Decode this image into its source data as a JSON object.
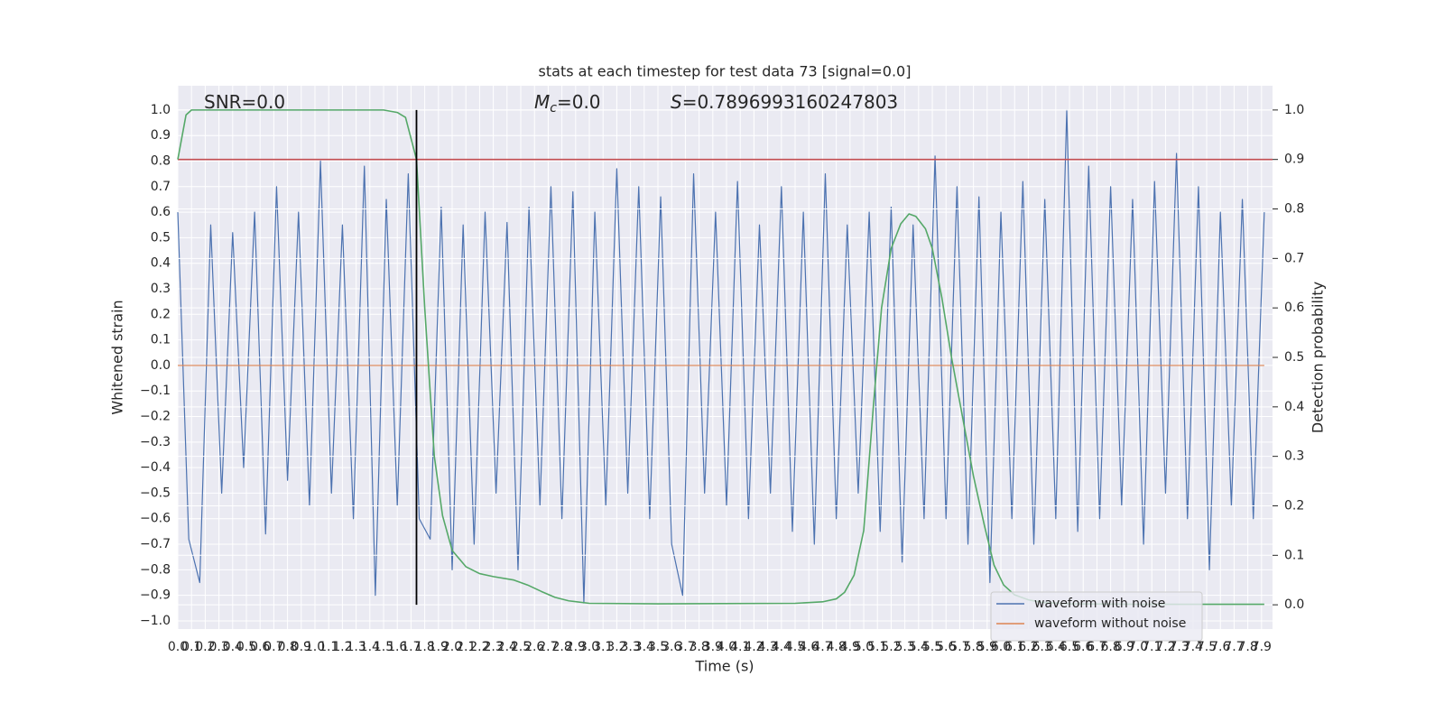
{
  "chart_data": {
    "type": "line",
    "title": "stats at each timestep for test data 73 [signal=0.0]",
    "xlabel": "Time (s)",
    "ylabel": "Whitened strain",
    "y2label": "Detection probability",
    "annotations": [
      {
        "text": "SNR=0.0"
      },
      {
        "symbol": "M",
        "subscript": "c",
        "text": "=0.0"
      },
      {
        "symbol": "S",
        "text": "=0.7896993160247803"
      }
    ],
    "xlim": [
      0,
      7.98
    ],
    "ylim": [
      -1.032,
      1.095
    ],
    "y2lim": [
      -0.049,
      1.049
    ],
    "grid": true,
    "legend": "lower right",
    "xticks": [
      {
        "value": 0,
        "label": "0.0"
      },
      0.1,
      0.2,
      0.3,
      0.4,
      0.5,
      0.6,
      0.7,
      0.8,
      0.9,
      {
        "value": 1,
        "label": "1.0"
      },
      1.1,
      1.2,
      1.3,
      1.4,
      1.5,
      1.6,
      1.7,
      1.8,
      1.9,
      {
        "value": 2,
        "label": "2.0"
      },
      2.1,
      2.2,
      2.3,
      2.4,
      2.5,
      2.6,
      2.7,
      2.8,
      2.9,
      {
        "value": 3,
        "label": "3.0"
      },
      3.1,
      3.2,
      3.3,
      3.4,
      3.5,
      3.6,
      3.7,
      3.8,
      3.9,
      {
        "value": 4,
        "label": "4.0"
      },
      4.1,
      4.2,
      4.3,
      4.4,
      4.5,
      4.6,
      4.7,
      4.8,
      4.9,
      {
        "value": 5,
        "label": "5.0"
      },
      5.1,
      5.2,
      5.3,
      5.4,
      5.5,
      5.6,
      5.7,
      5.8,
      5.9,
      {
        "value": 6,
        "label": "6.0"
      },
      6.1,
      6.2,
      6.3,
      6.4,
      6.5,
      6.6,
      6.7,
      6.8,
      6.9,
      {
        "value": 7,
        "label": "7.0"
      },
      7.1,
      7.2,
      7.3,
      7.4,
      7.5,
      7.6,
      7.7,
      7.8,
      7.9
    ],
    "yticks": [
      {
        "value": -1,
        "label": "−1.0"
      },
      {
        "value": -0.9,
        "label": "−0.9"
      },
      {
        "value": -0.8,
        "label": "−0.8"
      },
      {
        "value": -0.7,
        "label": "−0.7"
      },
      {
        "value": -0.6,
        "label": "−0.6"
      },
      {
        "value": -0.5,
        "label": "−0.5"
      },
      {
        "value": -0.4,
        "label": "−0.4"
      },
      {
        "value": -0.3,
        "label": "−0.3"
      },
      {
        "value": -0.2,
        "label": "−0.2"
      },
      {
        "value": -0.1,
        "label": "−0.1"
      },
      {
        "value": 0,
        "label": "0.0"
      },
      0.1,
      0.2,
      0.3,
      0.4,
      0.5,
      0.6,
      0.7,
      0.8,
      0.9,
      {
        "value": 1,
        "label": "1.0"
      }
    ],
    "y2ticks": [
      {
        "value": 0,
        "label": "0.0"
      },
      0.1,
      0.2,
      0.3,
      0.4,
      0.5,
      0.6,
      0.7,
      0.8,
      0.9,
      {
        "value": 1,
        "label": "1.0"
      }
    ],
    "series": [
      {
        "name": "waveform with noise",
        "color": "#4c72b0",
        "axis": "y",
        "x": [
          0,
          0.08,
          0.16,
          0.24,
          0.32,
          0.4,
          0.48,
          0.56,
          0.64,
          0.72,
          0.8,
          0.88,
          0.96,
          1.04,
          1.12,
          1.2,
          1.28,
          1.36,
          1.44,
          1.52,
          1.6,
          1.68,
          1.76,
          1.84,
          1.92,
          2,
          2.08,
          2.16,
          2.24,
          2.32,
          2.4,
          2.48,
          2.56,
          2.64,
          2.72,
          2.8,
          2.88,
          2.96,
          3.04,
          3.12,
          3.2,
          3.28,
          3.36,
          3.44,
          3.52,
          3.6,
          3.68,
          3.76,
          3.84,
          3.92,
          4,
          4.08,
          4.16,
          4.24,
          4.32,
          4.4,
          4.48,
          4.56,
          4.64,
          4.72,
          4.8,
          4.88,
          4.96,
          5.04,
          5.12,
          5.2,
          5.28,
          5.36,
          5.44,
          5.52,
          5.6,
          5.68,
          5.76,
          5.84,
          5.92,
          6,
          6.08,
          6.16,
          6.24,
          6.32,
          6.4,
          6.48,
          6.56,
          6.64,
          6.72,
          6.8,
          6.88,
          6.96,
          7.04,
          7.12,
          7.2,
          7.28,
          7.36,
          7.44,
          7.52,
          7.6,
          7.68,
          7.76,
          7.84,
          7.92
        ],
        "values": [
          0.6,
          -0.68,
          -0.85,
          0.55,
          -0.5,
          0.52,
          -0.4,
          0.6,
          -0.66,
          0.7,
          -0.45,
          0.6,
          -0.55,
          0.8,
          -0.5,
          0.55,
          -0.6,
          0.78,
          -0.9,
          0.65,
          -0.55,
          0.75,
          -0.6,
          -0.68,
          0.62,
          -0.8,
          0.55,
          -0.7,
          0.6,
          -0.5,
          0.56,
          -0.8,
          0.62,
          -0.55,
          0.7,
          -0.6,
          0.68,
          -0.93,
          0.6,
          -0.55,
          0.77,
          -0.5,
          0.7,
          -0.6,
          0.66,
          -0.7,
          -0.9,
          0.75,
          -0.5,
          0.6,
          -0.55,
          0.72,
          -0.6,
          0.55,
          -0.5,
          0.7,
          -0.65,
          0.6,
          -0.7,
          0.75,
          -0.6,
          0.55,
          -0.5,
          0.6,
          -0.65,
          0.62,
          -0.77,
          0.55,
          -0.6,
          0.82,
          -0.6,
          0.7,
          -0.7,
          0.66,
          -0.85,
          0.6,
          -0.6,
          0.72,
          -0.7,
          0.65,
          -0.6,
          1.0,
          -0.65,
          0.78,
          -0.6,
          0.7,
          -0.55,
          0.65,
          -0.7,
          0.72,
          -0.5,
          0.83,
          -0.6,
          0.7,
          -0.8,
          0.6,
          -0.55,
          0.65,
          -0.6,
          0.6
        ]
      },
      {
        "name": "waveform without noise",
        "color": "#dd8452",
        "axis": "y",
        "x": [
          0,
          7.92
        ],
        "values": [
          0,
          0
        ]
      },
      {
        "color": "#55a868",
        "axis": "y2",
        "x": [
          0,
          0.06,
          0.1,
          0.5,
          1,
          1.5,
          1.6,
          1.66,
          1.74,
          1.8,
          1.87,
          1.93,
          2,
          2.1,
          2.2,
          2.3,
          2.45,
          2.55,
          2.65,
          2.75,
          2.85,
          3,
          3.5,
          4.5,
          4.7,
          4.8,
          4.86,
          4.93,
          5,
          5.07,
          5.13,
          5.2,
          5.27,
          5.33,
          5.38,
          5.45,
          5.5,
          5.57,
          5.64,
          5.72,
          5.8,
          5.88,
          5.95,
          6.02,
          6.1,
          6.2,
          6.3,
          6.5,
          7,
          7.92
        ],
        "values": [
          0.9,
          0.99,
          1.0,
          1.0,
          1.0,
          1.0,
          0.995,
          0.985,
          0.9,
          0.6,
          0.3,
          0.18,
          0.11,
          0.077,
          0.063,
          0.057,
          0.05,
          0.04,
          0.027,
          0.015,
          0.008,
          0.003,
          0.002,
          0.003,
          0.006,
          0.012,
          0.025,
          0.06,
          0.15,
          0.4,
          0.6,
          0.72,
          0.77,
          0.79,
          0.785,
          0.76,
          0.72,
          0.62,
          0.5,
          0.38,
          0.26,
          0.16,
          0.08,
          0.04,
          0.02,
          0.01,
          0.005,
          0.002,
          0.001,
          0.001
        ]
      }
    ],
    "hline": {
      "y": 0.9,
      "axis": "y2",
      "color": "#c44e52"
    },
    "vline": {
      "x": 1.74,
      "ymin": 0,
      "ymax": 1,
      "axis": "y2",
      "color": "#000000"
    }
  }
}
